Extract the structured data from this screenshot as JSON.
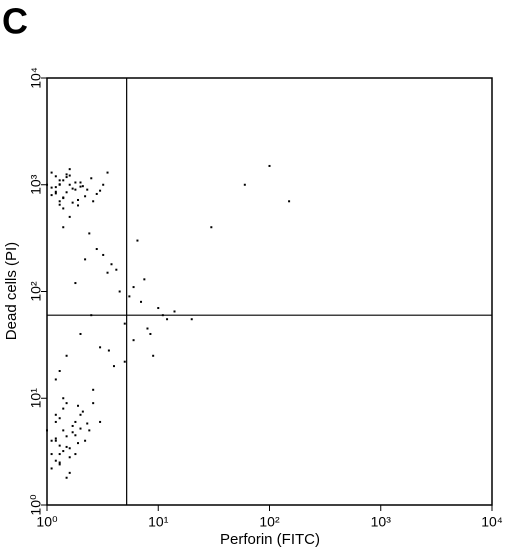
{
  "chart_data": {
    "type": "scatter",
    "panel_label": "C",
    "xlabel": "Perforin (FITC)",
    "ylabel": "Dead cells (PI)",
    "xscale": "log",
    "yscale": "log",
    "xlim": [
      1,
      10000
    ],
    "ylim": [
      1,
      10000
    ],
    "xticks": [
      {
        "value": 1,
        "label": "10⁰"
      },
      {
        "value": 10,
        "label": "10¹"
      },
      {
        "value": 100,
        "label": "10²"
      },
      {
        "value": 1000,
        "label": "10³"
      },
      {
        "value": 10000,
        "label": "10⁴"
      }
    ],
    "yticks": [
      {
        "value": 1,
        "label": "10⁰"
      },
      {
        "value": 10,
        "label": "10¹"
      },
      {
        "value": 100,
        "label": "10²"
      },
      {
        "value": 1000,
        "label": "10³"
      },
      {
        "value": 10000,
        "label": "10⁴"
      }
    ],
    "gates": {
      "x": 5.2,
      "y": 60
    },
    "series": [
      {
        "color": "#000000",
        "x": [
          1.1,
          1.2,
          1.3,
          1.4,
          1.5,
          1.6,
          1.2,
          1.3,
          1.8,
          2.0,
          2.2,
          1.1,
          1.4,
          1.7,
          2.5,
          3.0,
          1.3,
          1.5,
          1.9,
          1.2,
          1.6,
          2.1,
          2.8,
          1.4,
          1.0,
          1.3,
          1.7,
          2.3,
          1.5,
          1.1,
          3.5,
          2.6,
          1.8,
          1.2,
          1.4,
          2.0,
          1.6,
          1.3,
          3.2,
          1.9,
          1.1,
          1.2,
          1.3,
          1.4,
          1.5,
          1.2,
          1.6,
          1.8,
          2.0,
          1.3,
          1.4,
          1.7,
          2.2,
          1.1,
          1.5,
          1.9,
          1.3,
          2.4,
          1.6,
          1.2,
          1.4,
          2.1,
          1.0,
          1.8,
          1.5,
          2.6,
          1.3,
          1.7,
          1.2,
          2.0,
          1.4,
          1.6,
          3.0,
          1.1,
          1.9,
          1.3,
          2.3,
          1.5,
          1.8,
          1.2,
          1.2,
          1.5,
          2.0,
          2.5,
          3.0,
          4.0,
          5.0,
          6.0,
          7.0,
          8.0,
          9.0,
          10,
          12,
          1.8,
          2.2,
          3.5,
          4.5,
          6.5,
          1.4,
          2.8,
          3.8,
          5.5,
          7.5,
          11,
          1.6,
          2.4,
          3.2,
          4.2,
          6.0,
          8.5,
          1.3,
          2.6,
          3.6,
          5.0,
          14,
          20,
          30,
          100,
          150,
          60
        ],
        "values": [
          800,
          950,
          700,
          1100,
          850,
          1000,
          1200,
          650,
          900,
          1050,
          780,
          1300,
          600,
          920,
          1150,
          880,
          1000,
          1250,
          720,
          860,
          1400,
          970,
          820,
          750,
          1000,
          1100,
          680,
          900,
          1180,
          940,
          1300,
          700,
          1050,
          830,
          760,
          960,
          1220,
          1010,
          1000,
          640,
          3,
          4,
          2.5,
          5,
          3.5,
          6,
          2,
          4.5,
          7,
          3,
          8,
          5.5,
          4,
          2.2,
          9,
          3.8,
          6.5,
          5,
          2.8,
          4.2,
          3.2,
          7.5,
          5,
          6,
          1.8,
          9,
          3.6,
          4.8,
          2.6,
          5.2,
          10,
          3.4,
          6,
          4,
          8.5,
          2.4,
          5.8,
          4.4,
          3,
          7,
          15,
          25,
          40,
          60,
          30,
          20,
          50,
          35,
          80,
          45,
          25,
          70,
          55,
          120,
          200,
          150,
          100,
          300,
          400,
          250,
          180,
          90,
          130,
          60,
          500,
          350,
          220,
          160,
          110,
          40,
          18,
          12,
          28,
          22,
          65,
          55,
          400,
          1500,
          700,
          1000
        ]
      }
    ]
  }
}
